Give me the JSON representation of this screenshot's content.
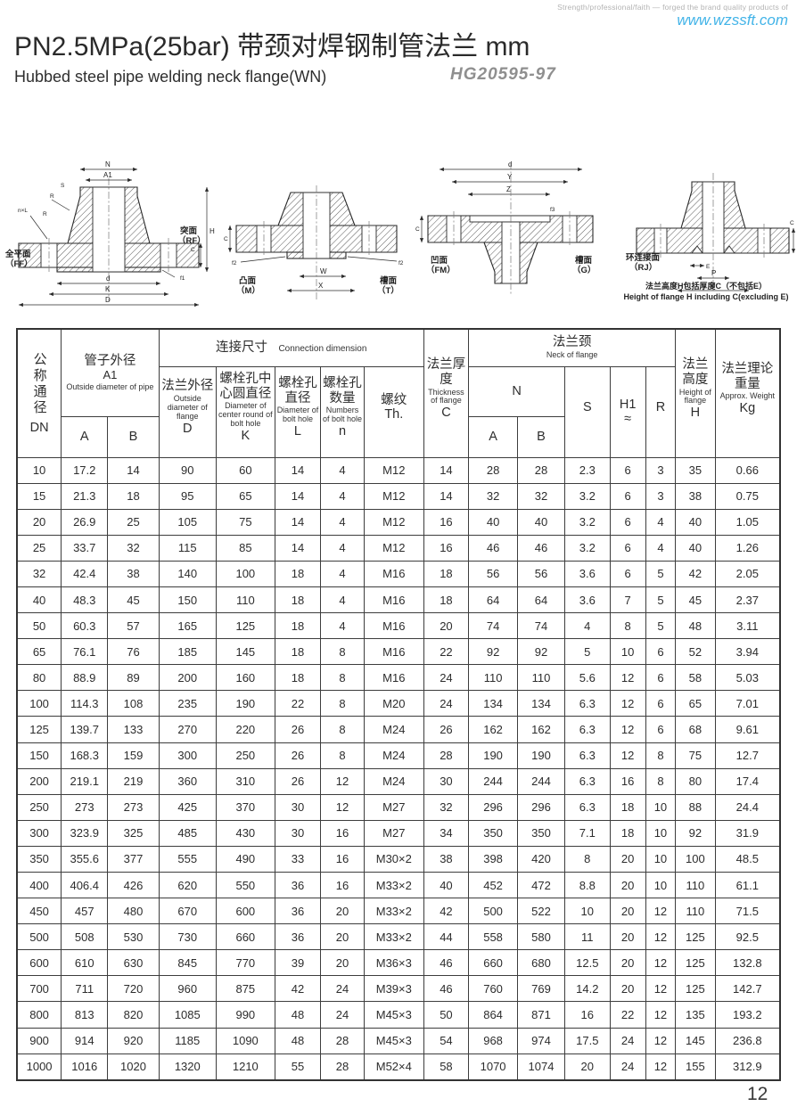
{
  "header": {
    "tagline": "Strength/professional/faith — forged the brand quality products of",
    "website": "www.wzssft.com",
    "title": "PN2.5MPa(25bar) 带颈对焊钢制管法兰  mm",
    "subtitle": "Hubbed steel pipe welding neck flange(WN)",
    "standard": "HG20595-97"
  },
  "colors": {
    "accent_cyan": "#43b4e8",
    "ink": "#2a2a2a",
    "standard_gray": "#8f8f8f"
  },
  "diagrams": {
    "caption_cn": "法兰高度H包括厚度C（不包括E）",
    "caption_en": "Height of flange H including C(excluding E)",
    "d1": {
      "dims": {
        "n": "N",
        "a1": "A1",
        "s": "S",
        "r": "R",
        "nxl": "n×L",
        "h": "H",
        "c": "C",
        "f1": "f1",
        "d": "d",
        "k": "K",
        "bigd": "D"
      },
      "face_left": "全平面",
      "face_left_code": "（FF）",
      "face_right": "突面",
      "face_right_code": "（RF）"
    },
    "d2": {
      "dims": {
        "c": "C",
        "f2": "f2",
        "w": "W",
        "x": "X"
      },
      "face_left": "凸面",
      "face_left_code": "（M）",
      "face_right": "槽面",
      "face_right_code": "（T）"
    },
    "d3": {
      "dims": {
        "d": "d",
        "y": "Y",
        "z": "Z",
        "c": "C",
        "f3": "f3"
      },
      "face_left": "凹面",
      "face_left_code": "（FM）",
      "face_right": "槽面",
      "face_right_code": "（G）"
    },
    "d4": {
      "dims": {
        "e": "E",
        "p": "P",
        "d": "d",
        "c": "C"
      },
      "face_label": "环连接面",
      "face_code": "（RJ）"
    }
  },
  "table": {
    "header": {
      "dn_cn": "公称通径",
      "dn_code": "DN",
      "pipe_cn": "管子外径",
      "pipe_sub": "A1",
      "pipe_en": "Outside diameter of pipe",
      "conn_cn": "连接尺寸",
      "conn_en": "Connection dimension",
      "d_cn": "法兰外径",
      "d_en": "Outside diameter of flange",
      "d_code": "D",
      "k_cn": "螺栓孔中心圆直径",
      "k_en": "Diameter of center round of bolt hole",
      "k_code": "K",
      "l_cn": "螺栓孔直径",
      "l_en": "Diameter of bolt hole",
      "l_code": "L",
      "n_cn": "螺栓孔数量",
      "n_en": "Numbers of bolt hole",
      "n_code": "n",
      "th_cn": "螺纹",
      "th_code": "Th.",
      "c_cn": "法兰厚度",
      "c_en": "Thickness of flange",
      "c_code": "C",
      "neck_cn": "法兰颈",
      "neck_en": "Neck of flange",
      "ngrp": "N",
      "na_code": "A",
      "nb_code": "B",
      "s_code": "S",
      "h1_code": "H1",
      "h1_approx": "≈",
      "r_code": "R",
      "h_cn": "法兰高度",
      "h_en": "Height of flange",
      "h_code": "H",
      "kg_cn": "法兰理论重量",
      "kg_en": "Approx. Weight",
      "kg_code": "Kg"
    },
    "rows": [
      [
        10,
        17.2,
        14,
        90,
        60,
        14,
        4,
        "M12",
        14,
        28,
        28,
        2.3,
        6,
        3,
        35,
        0.66
      ],
      [
        15,
        21.3,
        18,
        95,
        65,
        14,
        4,
        "M12",
        14,
        32,
        32,
        3.2,
        6,
        3,
        38,
        0.75
      ],
      [
        20,
        26.9,
        25,
        105,
        75,
        14,
        4,
        "M12",
        16,
        40,
        40,
        3.2,
        6,
        4,
        40,
        1.05
      ],
      [
        25,
        33.7,
        32,
        115,
        85,
        14,
        4,
        "M12",
        16,
        46,
        46,
        3.2,
        6,
        4,
        40,
        1.26
      ],
      [
        32,
        42.4,
        38,
        140,
        100,
        18,
        4,
        "M16",
        18,
        56,
        56,
        3.6,
        6,
        5,
        42,
        2.05
      ],
      [
        40,
        48.3,
        45,
        150,
        110,
        18,
        4,
        "M16",
        18,
        64,
        64,
        3.6,
        7,
        5,
        45,
        2.37
      ],
      [
        50,
        60.3,
        57,
        165,
        125,
        18,
        4,
        "M16",
        20,
        74,
        74,
        4,
        8,
        5,
        48,
        3.11
      ],
      [
        65,
        76.1,
        76,
        185,
        145,
        18,
        8,
        "M16",
        22,
        92,
        92,
        5,
        10,
        6,
        52,
        3.94
      ],
      [
        80,
        88.9,
        89,
        200,
        160,
        18,
        8,
        "M16",
        24,
        110,
        110,
        5.6,
        12,
        6,
        58,
        5.03
      ],
      [
        100,
        114.3,
        108,
        235,
        190,
        22,
        8,
        "M20",
        24,
        134,
        134,
        6.3,
        12,
        6,
        65,
        7.01
      ],
      [
        125,
        139.7,
        133,
        270,
        220,
        26,
        8,
        "M24",
        26,
        162,
        162,
        6.3,
        12,
        6,
        68,
        9.61
      ],
      [
        150,
        168.3,
        159,
        300,
        250,
        26,
        8,
        "M24",
        28,
        190,
        190,
        6.3,
        12,
        8,
        75,
        12.7
      ],
      [
        200,
        219.1,
        219,
        360,
        310,
        26,
        12,
        "M24",
        30,
        244,
        244,
        6.3,
        16,
        8,
        80,
        17.4
      ],
      [
        250,
        273,
        273,
        425,
        370,
        30,
        12,
        "M27",
        32,
        296,
        296,
        6.3,
        18,
        10,
        88,
        24.4
      ],
      [
        300,
        323.9,
        325,
        485,
        430,
        30,
        16,
        "M27",
        34,
        350,
        350,
        7.1,
        18,
        10,
        92,
        31.9
      ],
      [
        350,
        355.6,
        377,
        555,
        490,
        33,
        16,
        "M30×2",
        38,
        398,
        420,
        8,
        20,
        10,
        100,
        48.5
      ],
      [
        400,
        406.4,
        426,
        620,
        550,
        36,
        16,
        "M33×2",
        40,
        452,
        472,
        8.8,
        20,
        10,
        110,
        61.1
      ],
      [
        450,
        457,
        480,
        670,
        600,
        36,
        20,
        "M33×2",
        42,
        500,
        522,
        10,
        20,
        12,
        110,
        71.5
      ],
      [
        500,
        508,
        530,
        730,
        660,
        36,
        20,
        "M33×2",
        44,
        558,
        580,
        11,
        20,
        12,
        125,
        92.5
      ],
      [
        600,
        610,
        630,
        845,
        770,
        39,
        20,
        "M36×3",
        46,
        660,
        680,
        12.5,
        20,
        12,
        125,
        132.8
      ],
      [
        700,
        711,
        720,
        960,
        875,
        42,
        24,
        "M39×3",
        46,
        760,
        769,
        14.2,
        20,
        12,
        125,
        142.7
      ],
      [
        800,
        813,
        820,
        1085,
        990,
        48,
        24,
        "M45×3",
        50,
        864,
        871,
        16,
        22,
        12,
        135,
        193.2
      ],
      [
        900,
        914,
        920,
        1185,
        1090,
        48,
        28,
        "M45×3",
        54,
        968,
        974,
        17.5,
        24,
        12,
        145,
        236.8
      ],
      [
        1000,
        1016,
        1020,
        1320,
        1210,
        55,
        28,
        "M52×4",
        58,
        1070,
        1074,
        20,
        24,
        12,
        155,
        312.9
      ]
    ]
  },
  "page_number": "12"
}
